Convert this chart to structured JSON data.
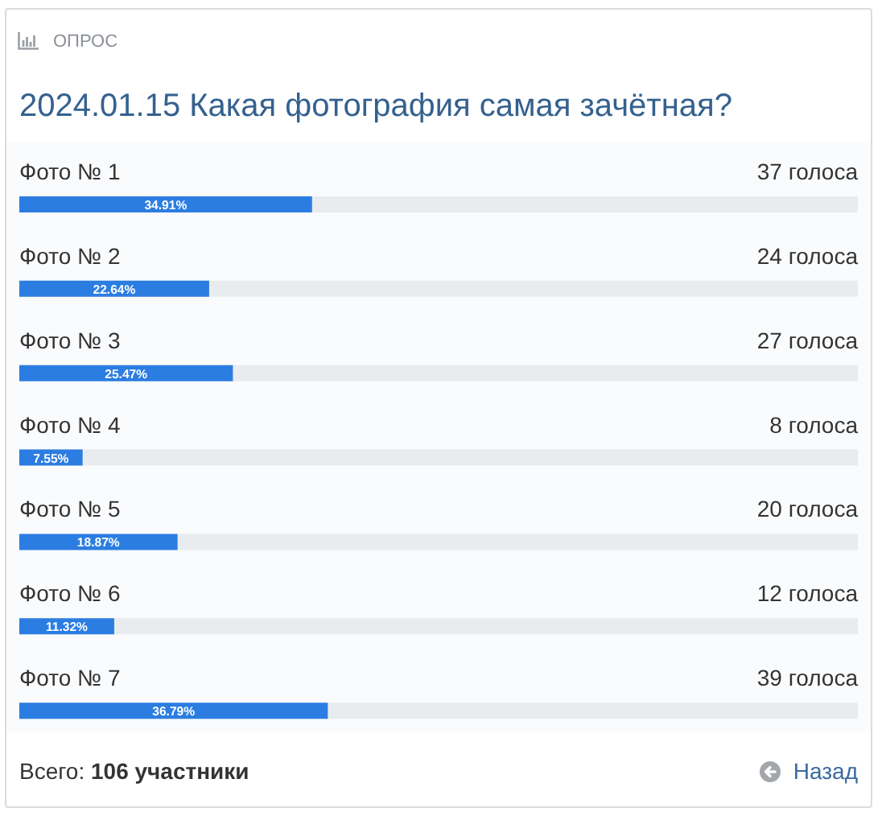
{
  "chart_data": {
    "type": "bar",
    "orientation": "horizontal",
    "title": "2024.01.15 Какая фотография самая зачётная?",
    "subtitle": "ОПРОС",
    "categories": [
      "Фото № 1",
      "Фото № 2",
      "Фото № 3",
      "Фото № 4",
      "Фото № 5",
      "Фото № 6",
      "Фото № 7"
    ],
    "values": [
      34.91,
      22.64,
      25.47,
      7.55,
      18.87,
      11.32,
      36.79
    ],
    "value_labels": [
      "34.91%",
      "22.64%",
      "25.47%",
      "7.55%",
      "18.87%",
      "11.32%",
      "36.79%"
    ],
    "color": "#2b7de1",
    "xlim": [
      0,
      100
    ],
    "tick_labels": "y",
    "annotations": [
      "37 голоса",
      "24 голоса",
      "27 голоса",
      "8 голоса",
      "20 голоса",
      "12 голоса",
      "39 голоса",
      "Всего: 106 участники",
      "Назад"
    ]
  }
}
